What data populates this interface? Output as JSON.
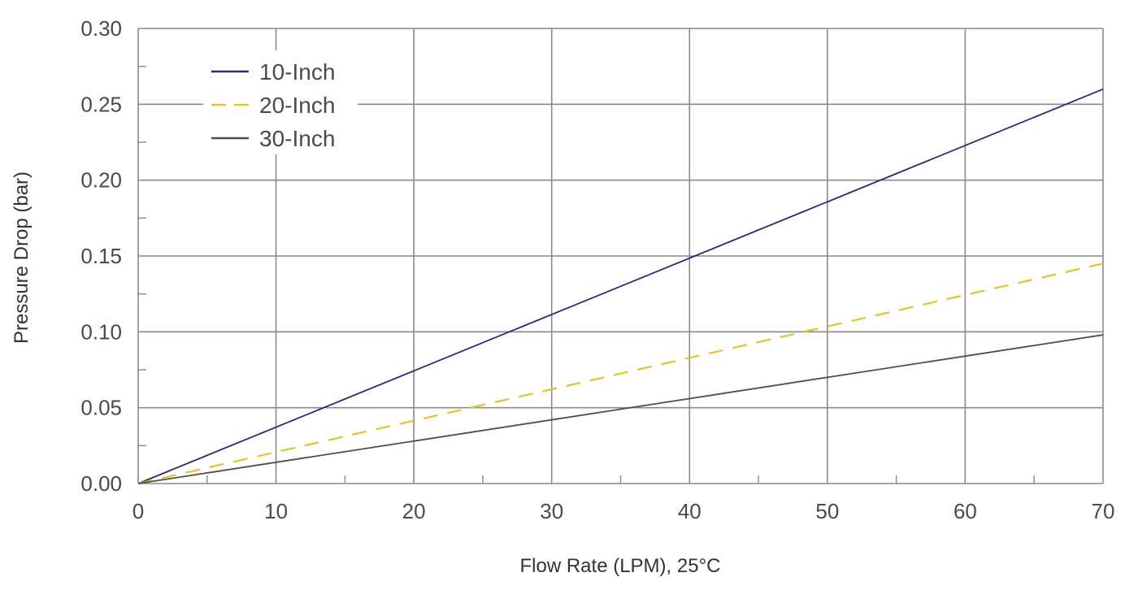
{
  "chart_data": {
    "type": "line",
    "xlabel": "Flow Rate (LPM), 25°C",
    "ylabel": "Pressure Drop (bar)",
    "xlim": [
      0,
      70
    ],
    "ylim": [
      0,
      0.3
    ],
    "x_ticks": [
      0,
      10,
      20,
      30,
      40,
      50,
      60,
      70
    ],
    "y_ticks": [
      0.0,
      0.05,
      0.1,
      0.15,
      0.2,
      0.25,
      0.3
    ],
    "x_tick_labels": [
      "0",
      "10",
      "20",
      "30",
      "40",
      "50",
      "60",
      "70"
    ],
    "y_tick_labels": [
      "0.00",
      "0.05",
      "0.10",
      "0.15",
      "0.20",
      "0.25",
      "0.30"
    ],
    "grid": true,
    "legend_position": "top-left",
    "series": [
      {
        "name": "10-Inch",
        "x": [
          0,
          70
        ],
        "y": [
          0,
          0.26
        ],
        "color": "#2e2a72",
        "dash": "solid"
      },
      {
        "name": "20-Inch",
        "x": [
          0,
          70
        ],
        "y": [
          0,
          0.145
        ],
        "color": "#e3c32a",
        "dash": "dashed"
      },
      {
        "name": "30-Inch",
        "x": [
          0,
          70
        ],
        "y": [
          0,
          0.098
        ],
        "color": "#4d4d4d",
        "dash": "solid"
      }
    ]
  }
}
